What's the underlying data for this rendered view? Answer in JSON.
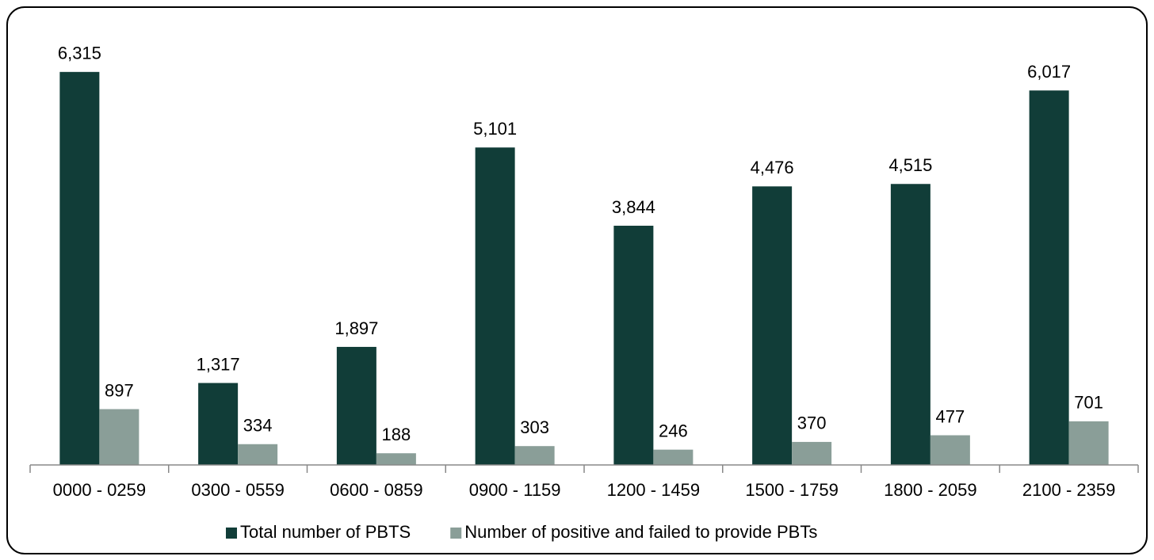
{
  "chart_data": {
    "type": "bar",
    "categories": [
      "0000 - 0259",
      "0300 - 0559",
      "0600 - 0859",
      "0900 - 1159",
      "1200 - 1459",
      "1500 - 1759",
      "1800 - 2059",
      "2100 - 2359"
    ],
    "series": [
      {
        "name": "Total number of PBTS",
        "color": "#113d38",
        "values": [
          6315,
          1317,
          1897,
          5101,
          3844,
          4476,
          4515,
          6017
        ],
        "value_labels": [
          "6,315",
          "1,317",
          "1,897",
          "5,101",
          "3,844",
          "4,476",
          "4,515",
          "6,017"
        ]
      },
      {
        "name": "Number of positive and failed to provide PBTs",
        "color": "#8a9e98",
        "values": [
          897,
          334,
          188,
          303,
          246,
          370,
          477,
          701
        ]
      }
    ],
    "ylim": [
      0,
      7000
    ],
    "legend": "bottom"
  }
}
